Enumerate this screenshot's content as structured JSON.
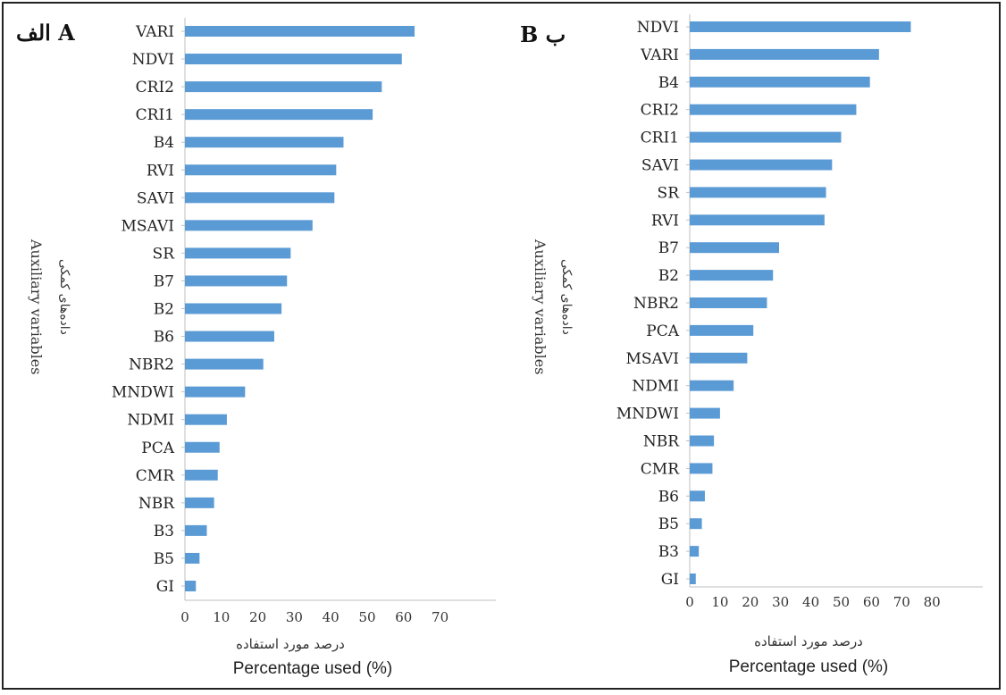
{
  "chart_data": [
    {
      "type": "bar",
      "orientation": "horizontal",
      "panel_label": "الف A",
      "categories": [
        "VARI",
        "NDVI",
        "CRI2",
        "CRI1",
        "B4",
        "RVI",
        "SAVI",
        "MSAVI",
        "SR",
        "B7",
        "B2",
        "B6",
        "NBR2",
        "MNDWI",
        "NDMI",
        "PCA",
        "CMR",
        "NBR",
        "B3",
        "B5",
        "GI"
      ],
      "values": [
        63,
        59.5,
        54,
        51.5,
        43.5,
        41.5,
        41,
        35,
        29,
        28,
        26.5,
        24.5,
        21.5,
        16.5,
        11.5,
        9.5,
        9,
        8,
        6,
        4,
        3
      ],
      "xticks": [
        0,
        10,
        20,
        30,
        40,
        50,
        60,
        70
      ],
      "xlim": [
        0,
        80
      ],
      "ylabel_en": "Auxiliary variables",
      "ylabel_fa": "دادەهای کمکی",
      "xlabel_fa": "درصد مورد استفاده",
      "xlabel_en": "Percentage used (%)",
      "color": "#5b9bd5",
      "grid": false
    },
    {
      "type": "bar",
      "orientation": "horizontal",
      "panel_label": "B ب",
      "categories": [
        "NDVI",
        "VARI",
        "B4",
        "CRI2",
        "CRI1",
        "SAVI",
        "SR",
        "RVI",
        "B7",
        "B2",
        "NBR2",
        "PCA",
        "MSAVI",
        "NDMI",
        "MNDWI",
        "NBR",
        "CMR",
        "B6",
        "B5",
        "B3",
        "GI"
      ],
      "values": [
        73,
        62.5,
        59.5,
        55,
        50,
        47,
        45,
        44.5,
        29.5,
        27.5,
        25.5,
        21,
        19,
        14.5,
        10,
        8,
        7.5,
        5,
        4,
        3,
        2
      ],
      "xticks": [
        0,
        10,
        20,
        30,
        40,
        50,
        60,
        70,
        80
      ],
      "xlim": [
        0,
        80
      ],
      "ylabel_en": "Auxiliary variables",
      "ylabel_fa": "دادەهای کمکی",
      "xlabel_fa": "درصد مورد استفاده",
      "xlabel_en": "Percentage used (%)",
      "color": "#5b9bd5",
      "grid": false
    }
  ]
}
